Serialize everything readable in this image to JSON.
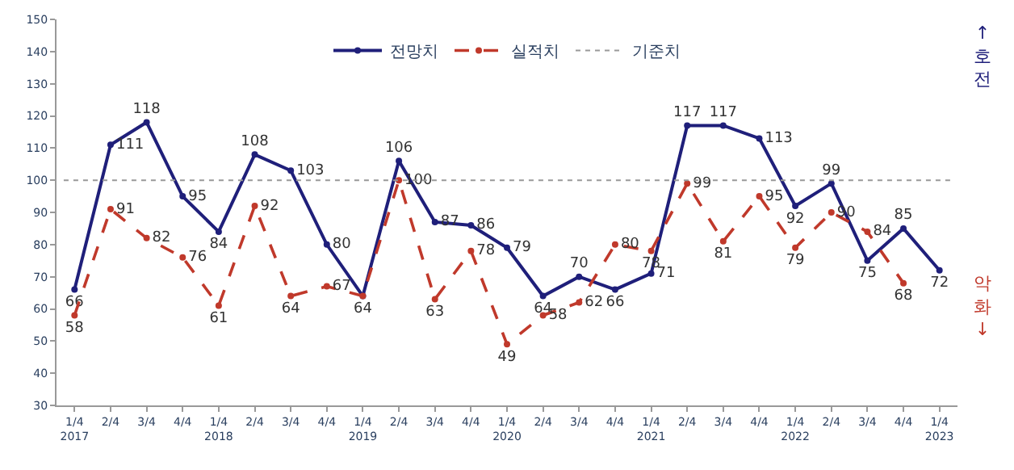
{
  "chart_data": {
    "type": "line",
    "categories": [
      "1/4\n2017",
      "2/4",
      "3/4",
      "4/4",
      "1/4\n2018",
      "2/4",
      "3/4",
      "4/4",
      "1/4\n2019",
      "2/4",
      "3/4",
      "4/4",
      "1/4\n2020",
      "2/4",
      "3/4",
      "4/4",
      "1/4\n2021",
      "2/4",
      "3/4",
      "4/4",
      "1/4\n2022",
      "2/4",
      "3/4",
      "4/4",
      "1/4\n2023"
    ],
    "series": [
      {
        "name": "전망치",
        "color": "#1f1f7a",
        "line_style": "solid",
        "values": [
          66,
          111,
          118,
          95,
          84,
          108,
          103,
          80,
          64,
          106,
          87,
          86,
          79,
          64,
          70,
          66,
          71,
          117,
          117,
          113,
          92,
          99,
          75,
          85,
          72
        ],
        "value_labels": [
          "66",
          "111",
          "118",
          "95",
          "84",
          "108",
          "103",
          "80",
          "64",
          "106",
          "87",
          "86",
          "79",
          "64",
          "70",
          "66",
          "71",
          "117",
          "117",
          "113",
          "92",
          "99",
          "75",
          "85",
          "72"
        ]
      },
      {
        "name": "실적치",
        "color": "#c0392b",
        "line_style": "dashed",
        "values": [
          58,
          91,
          82,
          76,
          61,
          92,
          64,
          67,
          64,
          100,
          63,
          78,
          49,
          58,
          62,
          80,
          78,
          99,
          81,
          95,
          79,
          90,
          84,
          68,
          null
        ],
        "value_labels": [
          "58",
          "91",
          "82",
          "76",
          "61",
          "92",
          "64",
          "67",
          null,
          "100",
          "63",
          "78",
          "49",
          "58",
          "62",
          "80",
          "78",
          "99",
          "81",
          "95",
          "79",
          "90",
          "84",
          "68",
          null
        ]
      }
    ],
    "ref_lines": [
      {
        "axis": "y",
        "value": 100,
        "label": "기준치",
        "color": "#999999",
        "line_style": "dotted"
      }
    ],
    "ylim": [
      30,
      150
    ],
    "yticks": [
      30,
      40,
      50,
      60,
      70,
      80,
      90,
      100,
      110,
      120,
      130,
      140,
      150
    ],
    "marker": "circle",
    "legend": "top",
    "annotations": [
      "↑호전",
      "악화↓"
    ]
  }
}
